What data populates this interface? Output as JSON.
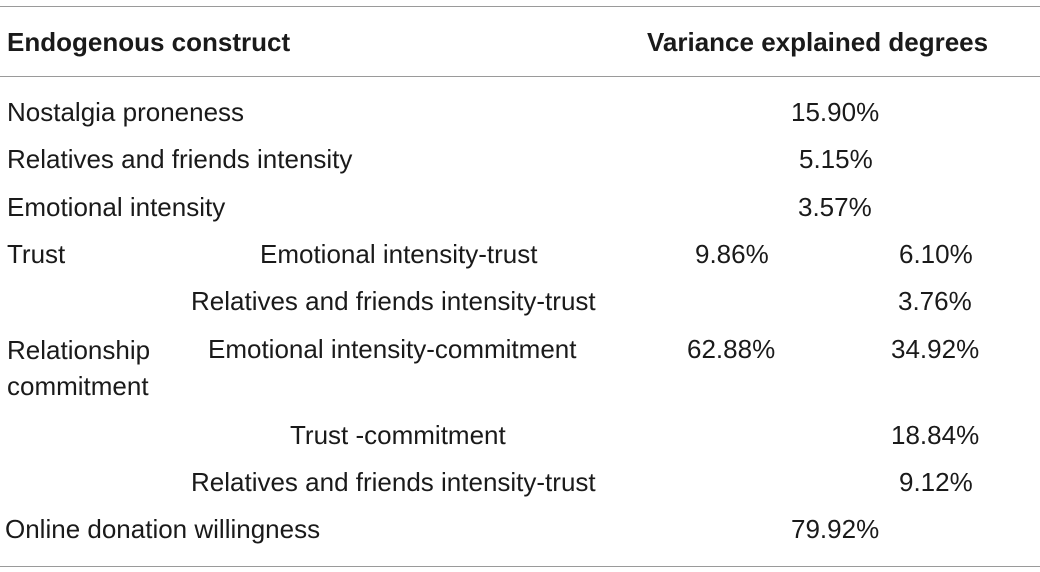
{
  "header": {
    "col1": "Endogenous construct",
    "col2": "Variance explained degrees"
  },
  "rows": [
    {
      "construct": "Nostalgia proneness",
      "overall": "15.90%"
    },
    {
      "construct": "Relatives and friends intensity",
      "overall": "5.15%"
    },
    {
      "construct": "Emotional intensity",
      "overall": "3.57%"
    }
  ],
  "trust": {
    "construct": "Trust",
    "total": "9.86%",
    "paths": [
      {
        "path": "Emotional intensity-trust",
        "value": "6.10%"
      },
      {
        "path": "Relatives and friends intensity-trust",
        "value": "3.76%"
      }
    ]
  },
  "commitment": {
    "construct": "Relationship commitment",
    "total": "62.88%",
    "paths": [
      {
        "path": "Emotional intensity-commitment",
        "value": "34.92%"
      },
      {
        "path": "Trust -commitment",
        "value": "18.84%"
      },
      {
        "path": "Relatives and friends intensity-trust",
        "value": "9.12%"
      }
    ]
  },
  "final": {
    "construct": "Online donation willingness",
    "overall": "79.92%"
  }
}
